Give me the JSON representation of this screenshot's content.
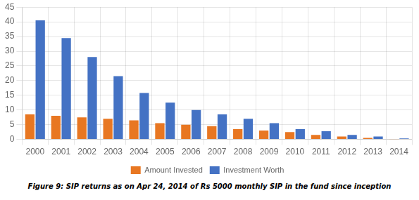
{
  "chart_data": {
    "type": "bar",
    "caption": "Figure 9: SIP returns as on Apr 24,  2014 of Rs 5000 monthly SIP in the fund since inception",
    "categories": [
      "2000",
      "2001",
      "2002",
      "2003",
      "2004",
      "2005",
      "2006",
      "2007",
      "2008",
      "2009",
      "2010",
      "2011",
      "2012",
      "2013",
      "2014"
    ],
    "series": [
      {
        "name": "Amount Invested",
        "color": "#E87722",
        "values": [
          8.5,
          8.0,
          7.5,
          7.0,
          6.5,
          5.5,
          5.0,
          4.5,
          3.5,
          3.0,
          2.5,
          1.5,
          1.0,
          0.5,
          0.1
        ]
      },
      {
        "name": "Investment Worth",
        "color": "#4472C4",
        "values": [
          40.5,
          34.5,
          28.0,
          21.5,
          15.8,
          12.5,
          10.0,
          8.5,
          7.0,
          5.5,
          3.5,
          2.8,
          1.5,
          1.0,
          0.3
        ]
      }
    ],
    "ylim": [
      0,
      45
    ],
    "yticks": [
      0,
      5,
      10,
      15,
      20,
      25,
      30,
      35,
      40,
      45
    ],
    "grid": true,
    "legend": "bottom"
  }
}
